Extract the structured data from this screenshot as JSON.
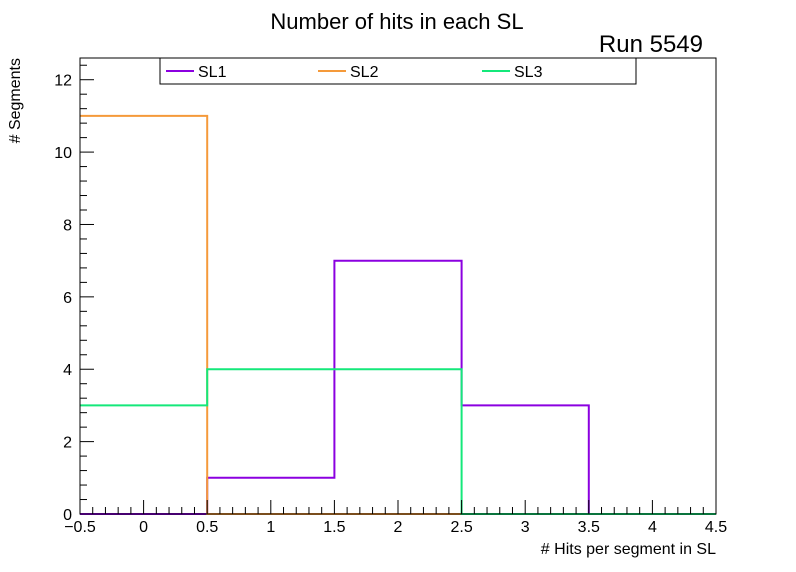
{
  "chart_data": {
    "type": "histogram",
    "title": "Number of hits in each SL",
    "run_label": "Run 5549",
    "xlabel": "# Hits per segment in SL",
    "ylabel": "# Segments",
    "xlim": [
      -0.5,
      4.5
    ],
    "ylim": [
      0,
      12.6
    ],
    "bin_edges": [
      -0.5,
      0.5,
      1.5,
      2.5,
      3.5,
      4.5
    ],
    "x_ticks": [
      {
        "value": -0.5,
        "label": "−0.5"
      },
      {
        "value": 0,
        "label": "0"
      },
      {
        "value": 0.5,
        "label": "0.5"
      },
      {
        "value": 1,
        "label": "1"
      },
      {
        "value": 1.5,
        "label": "1.5"
      },
      {
        "value": 2,
        "label": "2"
      },
      {
        "value": 2.5,
        "label": "2.5"
      },
      {
        "value": 3,
        "label": "3"
      },
      {
        "value": 3.5,
        "label": "3.5"
      },
      {
        "value": 4,
        "label": "4"
      },
      {
        "value": 4.5,
        "label": "4.5"
      }
    ],
    "y_ticks": [
      {
        "value": 0,
        "label": "0"
      },
      {
        "value": 2,
        "label": "2"
      },
      {
        "value": 4,
        "label": "4"
      },
      {
        "value": 6,
        "label": "6"
      },
      {
        "value": 8,
        "label": "8"
      },
      {
        "value": 10,
        "label": "10"
      },
      {
        "value": 12,
        "label": "12"
      }
    ],
    "series": [
      {
        "name": "SL1",
        "color": "#8b00e0",
        "values": [
          0,
          1,
          7,
          3,
          0
        ]
      },
      {
        "name": "SL2",
        "color": "#f59a3a",
        "values": [
          11,
          0,
          0,
          0,
          0
        ]
      },
      {
        "name": "SL3",
        "color": "#14e87a",
        "values": [
          3,
          4,
          4,
          0,
          0
        ]
      }
    ],
    "legend_position": "top-center",
    "grid": false
  }
}
